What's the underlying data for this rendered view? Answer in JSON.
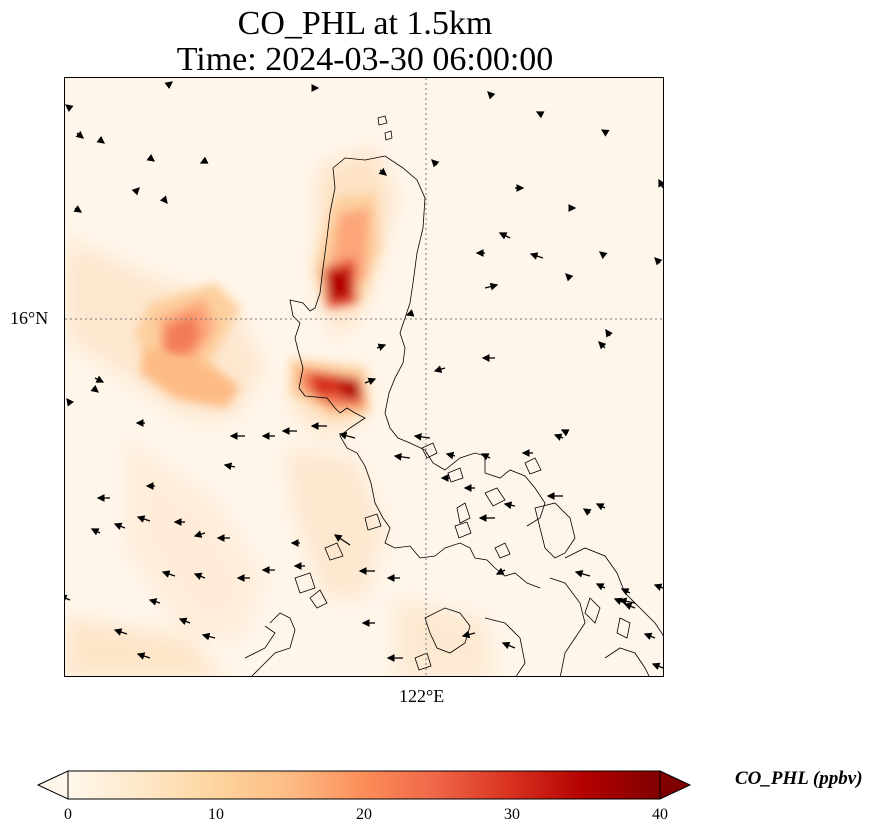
{
  "title": {
    "line1": "CO_PHL at 1.5km",
    "line2": "Time: 2024-03-30 06:00:00"
  },
  "map": {
    "lat_tick_label": "16°N",
    "lon_tick_label": "122°E",
    "gridlines": "dotted",
    "coastlines": true,
    "wind_vectors": true,
    "colormap": "OrRd"
  },
  "colorbar": {
    "label": "CO_PHL (ppbv)",
    "min": 0,
    "max": 40,
    "ticks": [
      "0",
      "10",
      "20",
      "30",
      "40"
    ],
    "extend": "both",
    "colors": [
      "#fff7ec",
      "#fee8c8",
      "#fdd49e",
      "#fdbb84",
      "#fc8d59",
      "#ef6548",
      "#d7301f",
      "#b30000",
      "#7f0000"
    ]
  }
}
